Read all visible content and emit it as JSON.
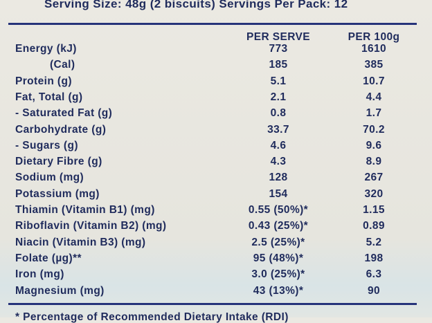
{
  "serving": "Serving Size: 48g (2 biscuits) Servings Per Pack: 12",
  "table": {
    "header": [
      "PER SERVE",
      "PER 100g"
    ],
    "rows": [
      [
        "Energy (kJ)",
        "773",
        "1610"
      ],
      [
        "(Cal)",
        "185",
        "385"
      ],
      [
        "Protein (g)",
        "5.1",
        "10.7"
      ],
      [
        "Fat, Total (g)",
        "2.1",
        "4.4"
      ],
      [
        "- Saturated Fat (g)",
        "0.8",
        "1.7"
      ],
      [
        "Carbohydrate (g)",
        "33.7",
        "70.2"
      ],
      [
        "- Sugars (g)",
        "4.6",
        "9.6"
      ],
      [
        "Dietary Fibre (g)",
        "4.3",
        "8.9"
      ],
      [
        "Sodium (mg)",
        "128",
        "267"
      ],
      [
        "Potassium (mg)",
        "154",
        "320"
      ],
      [
        "Thiamin (Vitamin B1) (mg)",
        "0.55 (50%)*",
        "1.15"
      ],
      [
        "Riboflavin (Vitamin B2) (mg)",
        "0.43 (25%)*",
        "0.89"
      ],
      [
        "Niacin (Vitamin B3) (mg)",
        "2.5 (25%)*",
        "5.2"
      ],
      [
        "Folate (µg)**",
        "95 (48%)*",
        "198"
      ],
      [
        "Iron (mg)",
        "3.0 (25%)*",
        "6.3"
      ],
      [
        "Magnesium (mg)",
        "43 (13%)*",
        "90"
      ]
    ]
  },
  "footnote": "* Percentage of Recommended Dietary Intake (RDI)"
}
